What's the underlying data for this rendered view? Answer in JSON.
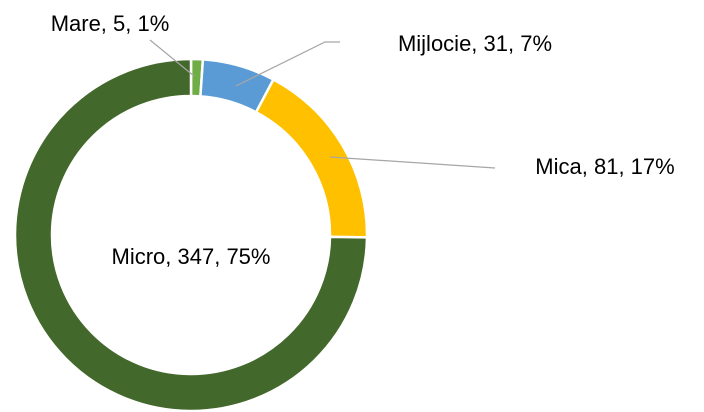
{
  "chart_data": {
    "type": "pie",
    "categories": [
      "Mare",
      "Mijlocie",
      "Mica",
      "Micro"
    ],
    "values": [
      5,
      31,
      81,
      347
    ],
    "value_labels": [
      "Mare, 5, 1%",
      "Mijlocie, 31, 7%",
      "Mica, 81, 17%",
      "Micro, 347, 75%"
    ],
    "colors": [
      "#70ad47",
      "#5b9bd5",
      "#ffc000",
      "#43682b"
    ]
  }
}
